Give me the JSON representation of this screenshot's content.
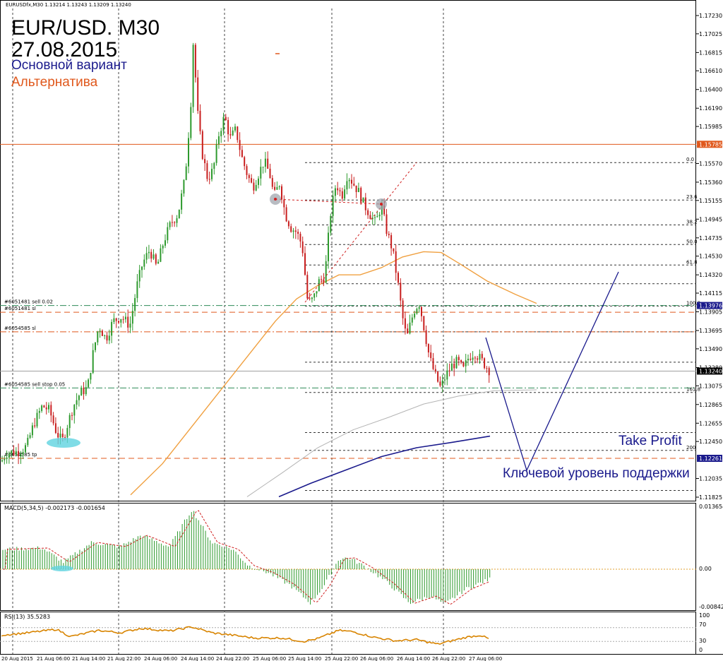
{
  "window_title": "EURUSDfx,M30  1.13214 1.13243 1.13209 1.13240",
  "headline": {
    "line1": "EUR/USD. M30",
    "line2": "27.08.2015",
    "variant_main": "Основной вариант",
    "variant_alt": "Альтернатива"
  },
  "colors": {
    "main_blue": "#1a1a8c",
    "alt_orange": "#e0581c",
    "bull": "#2e9a2e",
    "bear": "#c81e1e",
    "ma_orange": "#f0a040",
    "ma_gray": "#b4b4b4",
    "ma_navy": "#1a1a8c",
    "rsi": "#d88400"
  },
  "annotations": {
    "take_profit": "Take Profit",
    "key_support": "Ключевой уровень поддержки"
  },
  "chart_data": [
    {
      "type": "candlestick",
      "panel": "price",
      "symbol": "EURUSDfx",
      "timeframe": "M30",
      "ylim": [
        1.118,
        1.174
      ],
      "yticks": [
        "1.17230",
        "1.17025",
        "1.16815",
        "1.16610",
        "1.16400",
        "1.16190",
        "1.15985",
        "1.15570",
        "1.15360",
        "1.15155",
        "1.14945",
        "1.14735",
        "1.14530",
        "1.14320",
        "1.14115",
        "1.13905",
        "1.13695",
        "1.13490",
        "1.13280",
        "1.13075",
        "1.12865",
        "1.12655",
        "1.12450",
        "1.12035",
        "1.11825"
      ],
      "price_tags": [
        {
          "value": "1.15785",
          "color": "#e0581c"
        },
        {
          "value": "1.13976",
          "color": "#1a1a8c"
        },
        {
          "value": "1.13240",
          "color": "#000000"
        },
        {
          "value": "1.12261",
          "color": "#1a1a8c"
        }
      ],
      "xticks": [
        "20 Aug 2015",
        "21 Aug 06:00",
        "21 Aug 14:00",
        "21 Aug 22:00",
        "24 Aug 06:00",
        "24 Aug 14:00",
        "24 Aug 22:00",
        "25 Aug 06:00",
        "25 Aug 14:00",
        "25 Aug 22:00",
        "26 Aug 06:00",
        "26 Aug 14:00",
        "26 Aug 22:00",
        "27 Aug 06:00"
      ],
      "path": [
        [
          0,
          1.122
        ],
        [
          9,
          1.1232
        ],
        [
          18,
          1.1233
        ],
        [
          28,
          1.1234
        ],
        [
          38,
          1.124
        ],
        [
          48,
          1.1265
        ],
        [
          60,
          1.1285
        ],
        [
          70,
          1.128
        ],
        [
          80,
          1.1255
        ],
        [
          88,
          1.1245
        ],
        [
          96,
          1.1265
        ],
        [
          104,
          1.1285
        ],
        [
          114,
          1.13
        ],
        [
          124,
          1.1305
        ],
        [
          132,
          1.1345
        ],
        [
          140,
          1.1375
        ],
        [
          150,
          1.136
        ],
        [
          160,
          1.138
        ],
        [
          172,
          1.1385
        ],
        [
          184,
          1.1375
        ],
        [
          194,
          1.142
        ],
        [
          202,
          1.1445
        ],
        [
          212,
          1.146
        ],
        [
          222,
          1.144
        ],
        [
          232,
          1.147
        ],
        [
          242,
          1.149
        ],
        [
          252,
          1.15
        ],
        [
          262,
          1.154
        ],
        [
          270,
          1.162
        ],
        [
          274,
          1.17
        ],
        [
          279,
          1.162
        ],
        [
          286,
          1.157
        ],
        [
          294,
          1.154
        ],
        [
          302,
          1.155
        ],
        [
          310,
          1.159
        ],
        [
          318,
          1.161
        ],
        [
          326,
          1.1585
        ],
        [
          334,
          1.1595
        ],
        [
          342,
          1.1565
        ],
        [
          350,
          1.1545
        ],
        [
          358,
          1.153
        ],
        [
          366,
          1.1545
        ],
        [
          374,
          1.156
        ],
        [
          382,
          1.1545
        ],
        [
          388,
          1.152
        ],
        [
          396,
          1.1535
        ],
        [
          404,
          1.15
        ],
        [
          412,
          1.1485
        ],
        [
          420,
          1.148
        ],
        [
          428,
          1.1465
        ],
        [
          436,
          1.14
        ],
        [
          444,
          1.1405
        ],
        [
          452,
          1.1425
        ],
        [
          460,
          1.143
        ],
        [
          468,
          1.15
        ],
        [
          476,
          1.1535
        ],
        [
          484,
          1.152
        ],
        [
          492,
          1.1545
        ],
        [
          500,
          1.1535
        ],
        [
          508,
          1.1525
        ],
        [
          516,
          1.151
        ],
        [
          524,
          1.15
        ],
        [
          532,
          1.149
        ],
        [
          540,
          1.151
        ],
        [
          548,
          1.148
        ],
        [
          556,
          1.146
        ],
        [
          564,
          1.142
        ],
        [
          570,
          1.1385
        ],
        [
          576,
          1.136
        ],
        [
          582,
          1.138
        ],
        [
          588,
          1.1395
        ],
        [
          594,
          1.14
        ],
        [
          600,
          1.1375
        ],
        [
          608,
          1.134
        ],
        [
          616,
          1.132
        ],
        [
          624,
          1.1305
        ],
        [
          632,
          1.132
        ],
        [
          640,
          1.133
        ],
        [
          648,
          1.1335
        ],
        [
          656,
          1.1325
        ],
        [
          664,
          1.134
        ],
        [
          672,
          1.1345
        ],
        [
          680,
          1.1338
        ],
        [
          688,
          1.133
        ],
        [
          694,
          1.1324
        ]
      ],
      "h_lines": [
        {
          "value": 1.15785,
          "color": "#e0581c",
          "style": "solid"
        },
        {
          "value": 1.13976,
          "color": "#2e8b57",
          "style": "dashdot",
          "label": "#6051481 sell 0.02"
        },
        {
          "value": 1.139,
          "color": "#e0581c",
          "style": "dash",
          "label": "#6051481 sl"
        },
        {
          "value": 1.1368,
          "color": "#e0581c",
          "style": "dashdot",
          "label": "#6054585 sl"
        },
        {
          "value": 1.1324,
          "color": "#a0a0a0",
          "style": "solid"
        },
        {
          "value": 1.1305,
          "color": "#2e8b57",
          "style": "dashdot",
          "label": "#6054585 sell stop 0.05"
        },
        {
          "value": 1.12261,
          "color": "#e0581c",
          "style": "dash",
          "label": "#6054585 tp"
        }
      ],
      "fibonacci": [
        {
          "label": "0.0",
          "value": 1.1558
        },
        {
          "label": "23.6",
          "value": 1.1516
        },
        {
          "label": "38.2",
          "value": 1.1488
        },
        {
          "label": "50.0",
          "value": 1.1466
        },
        {
          "label": "61.8",
          "value": 1.1443
        },
        {
          "label": "",
          "value": 1.1422
        },
        {
          "label": "100.0",
          "value": 1.1397
        },
        {
          "label": "",
          "value": 1.1368
        },
        {
          "label": "",
          "value": 1.1334
        },
        {
          "label": "161.8",
          "value": 1.13
        },
        {
          "label": "",
          "value": 1.1255
        },
        {
          "label": "200",
          "value": 1.1235
        },
        {
          "label": "",
          "value": 1.119
        }
      ]
    },
    {
      "type": "histogram",
      "panel": "macd",
      "title": "MACD(5,34,5) -0.002173 -0.001654",
      "yticks": [
        "0.013654",
        "0.00",
        "-0.00842"
      ],
      "ylim": [
        -0.00842,
        0.013654
      ]
    },
    {
      "type": "line",
      "panel": "rsi",
      "title": "RSI(13) 35.5283",
      "yticks": [
        "100",
        "70",
        "30",
        "0"
      ],
      "ylim": [
        0,
        100
      ]
    }
  ]
}
